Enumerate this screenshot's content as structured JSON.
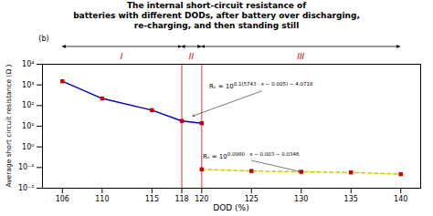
{
  "chart_data": {
    "type": "line",
    "title": "The internal short-circuit resistance of\nbatteries with different DODs, after battery over discharging,\nre-charging, and then standing still",
    "subtitle": "(b)",
    "xlabel": "DOD (%)",
    "ylabel": "Average short circuit resistance (Ω )",
    "log": "y",
    "grid": false,
    "xlim": [
      104,
      142
    ],
    "ylim": [
      0.01,
      10000
    ],
    "xticks": [
      106,
      110,
      115,
      118,
      120,
      125,
      130,
      135,
      140
    ],
    "yticks": [
      {
        "value": 0.01,
        "label": "10⁻²"
      },
      {
        "value": 0.1,
        "label": "10⁻¹"
      },
      {
        "value": 1,
        "label": "10⁰"
      },
      {
        "value": 10,
        "label": "10¹"
      },
      {
        "value": 100,
        "label": "10²"
      },
      {
        "value": 1000,
        "label": "10³"
      },
      {
        "value": 10000,
        "label": "10⁴"
      }
    ],
    "series": [
      {
        "x": [
          106,
          110,
          115,
          118,
          120
        ],
        "values": [
          1500,
          220,
          60,
          18,
          14
        ],
        "color": "#0000cc",
        "line_style": "solid",
        "marker": "square",
        "marker_color": "#cc0000"
      },
      {
        "x": [
          120,
          125,
          130,
          135,
          140
        ],
        "values": [
          0.082,
          0.068,
          0.062,
          0.058,
          0.048
        ],
        "color": "#cccc00",
        "line_style": "dashed",
        "marker": "square",
        "marker_color": "#cc0000"
      }
    ],
    "vlines": {
      "x": [
        118,
        120
      ],
      "color": "#cc0000"
    },
    "regions": [
      {
        "label": "I",
        "x": [
          106,
          118
        ]
      },
      {
        "label": "II",
        "x": [
          118,
          120
        ]
      },
      {
        "label": "III",
        "x": [
          120,
          140
        ]
      }
    ],
    "region_label_color": "#cc0000",
    "annotations": [
      {
        "text": "Rₛ = 10",
        "exponent": "0.1(5743 · x − 0.005) − 4.0718",
        "xy": [
          119,
          30
        ],
        "xytext": [
          126,
          500
        ]
      },
      {
        "text": "Rₛ = 10",
        "exponent": "0.0980 · x − 0.003 − 0.0346",
        "xy": [
          130,
          0.062
        ],
        "xytext": [
          125,
          0.22
        ]
      }
    ]
  }
}
